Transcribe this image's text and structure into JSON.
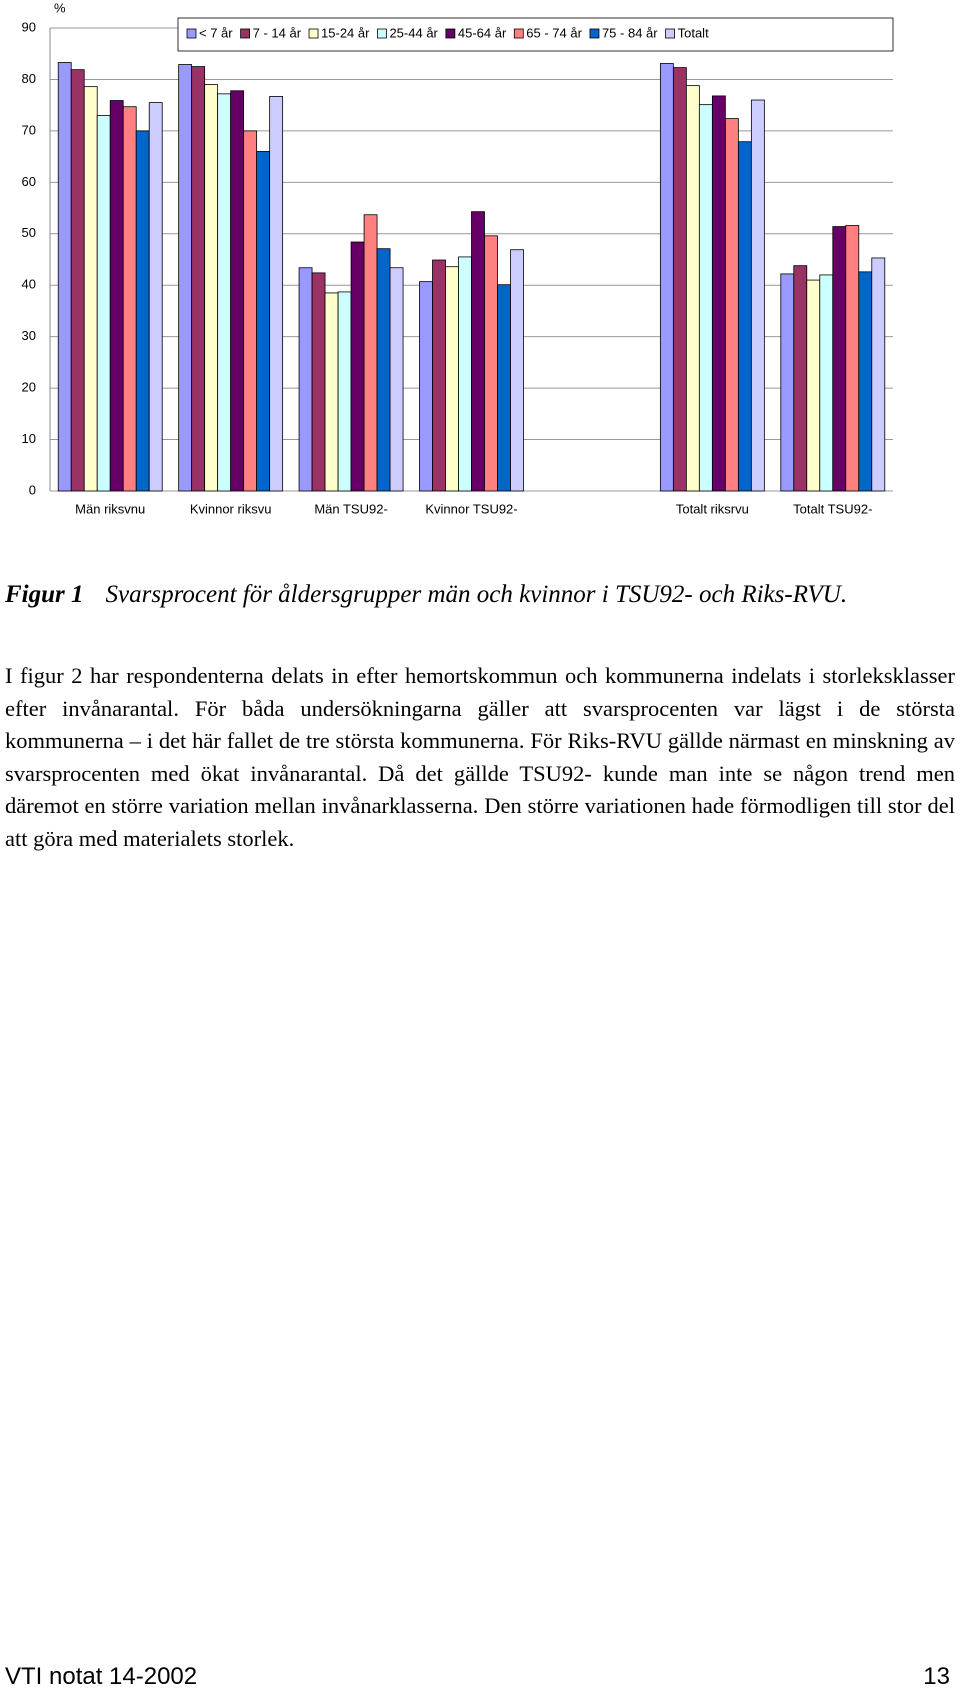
{
  "chart_data": {
    "type": "bar",
    "y_label": "%",
    "categories": [
      "Män riksvnu",
      "Kvinnor riksvu",
      "Män TSU92-",
      "Kvinnor TSU92-",
      null,
      "Totalt riksrvu",
      "Totalt TSU92-"
    ],
    "series": [
      {
        "name": "< 7 år",
        "color": "#9999ff",
        "values": [
          83.3,
          82.9,
          43.4,
          40.7,
          null,
          83.1,
          42.2
        ]
      },
      {
        "name": "7 - 14 år",
        "color": "#993366",
        "values": [
          81.9,
          82.5,
          42.4,
          44.9,
          null,
          82.3,
          43.8
        ]
      },
      {
        "name": "15-24 år",
        "color": "#ffffcc",
        "values": [
          78.6,
          79.0,
          38.5,
          43.6,
          null,
          78.8,
          41.0
        ]
      },
      {
        "name": "25-44 år",
        "color": "#ccffff",
        "values": [
          73.0,
          77.2,
          38.7,
          45.5,
          null,
          75.1,
          42.0
        ]
      },
      {
        "name": "45-64 år",
        "color": "#660066",
        "values": [
          75.9,
          77.8,
          48.4,
          54.3,
          null,
          76.8,
          51.4
        ]
      },
      {
        "name": "65 - 74 år",
        "color": "#ff8080",
        "values": [
          74.7,
          70.0,
          53.7,
          49.6,
          null,
          72.4,
          51.6
        ]
      },
      {
        "name": "75 - 84 år",
        "color": "#0066cc",
        "values": [
          70.0,
          66.0,
          47.1,
          40.1,
          null,
          67.9,
          42.6
        ]
      },
      {
        "name": "Totalt",
        "color": "#ccccff",
        "values": [
          75.5,
          76.7,
          43.4,
          46.9,
          null,
          76.0,
          45.3
        ]
      }
    ],
    "ylim": [
      0,
      90
    ],
    "yticks": [
      0,
      10,
      20,
      30,
      40,
      50,
      60,
      70,
      80,
      90
    ],
    "grid": true
  },
  "caption": {
    "label": "Figur 1",
    "text": "Svarsprocent för åldersgrupper män och kvinnor i TSU92- och Riks-RVU."
  },
  "body": "I figur 2 har respondenterna delats in efter hemortskommun och kommunerna indelats i storleksklasser efter invånarantal. För båda undersökningarna gäller att svarsprocenten var lägst i de största kommunerna – i det här fallet de tre största kommunerna. För Riks-RVU gällde närmast en minskning av svarsprocenten med ökat invånarantal. Då det gällde TSU92- kunde man inte se någon trend men däremot en större variation mellan invånarklasserna. Den större variationen hade förmodligen till stor del att göra med materialets storlek.",
  "footer": {
    "left": "VTI notat 14-2002",
    "right": "13"
  }
}
